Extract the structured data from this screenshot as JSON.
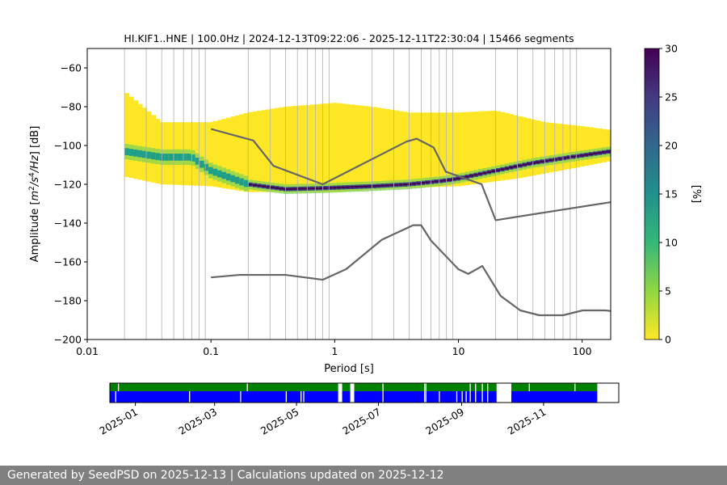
{
  "chart_data": [
    {
      "type": "heatmap",
      "title": "HI.KIF1..HNE | 100.0Hz | 2024-12-13T09:22:06 - 2025-12-11T22:30:04 | 15466 segments",
      "xlabel": "Period [s]",
      "ylabel_parts": [
        "Amplitude [",
        "m",
        "2",
        "/s",
        "4",
        "/Hz",
        "] [dB]"
      ],
      "xscale": "log",
      "xlim": [
        0.01,
        170
      ],
      "ylim": [
        -200,
        -50
      ],
      "x_ticks": [
        {
          "v": 0.01,
          "label": "0.01"
        },
        {
          "v": 0.1,
          "label": "0.1"
        },
        {
          "v": 1,
          "label": "1"
        },
        {
          "v": 10,
          "label": "10"
        },
        {
          "v": 100,
          "label": "100"
        }
      ],
      "y_ticks": [
        {
          "v": -60,
          "label": "−60"
        },
        {
          "v": -80,
          "label": "−80"
        },
        {
          "v": -100,
          "label": "−100"
        },
        {
          "v": -120,
          "label": "−120"
        },
        {
          "v": -140,
          "label": "−140"
        },
        {
          "v": -160,
          "label": "−160"
        },
        {
          "v": -180,
          "label": "−180"
        },
        {
          "v": -200,
          "label": "−200"
        }
      ],
      "vertical_grid_periods": [
        0.02,
        0.03,
        0.04,
        0.05,
        0.06,
        0.07,
        0.08,
        0.09,
        0.2,
        0.3,
        0.4,
        0.5,
        0.6,
        0.7,
        0.8,
        0.9,
        2,
        3,
        4,
        5,
        6,
        7,
        8,
        9,
        20,
        30,
        40,
        50,
        60,
        70,
        80,
        90
      ],
      "horizontal_grid": false,
      "colorbar": {
        "label": "[%]",
        "range": [
          0,
          30
        ],
        "ticks": [
          0,
          5,
          10,
          15,
          20,
          25,
          30
        ],
        "colormap": "viridis"
      },
      "psd": {
        "period_range": [
          0.02,
          170
        ],
        "mode": [
          [
            0.02,
            -103
          ],
          [
            0.04,
            -106
          ],
          [
            0.07,
            -106
          ],
          [
            0.1,
            -113
          ],
          [
            0.2,
            -120
          ],
          [
            0.4,
            -122.5
          ],
          [
            0.8,
            -122
          ],
          [
            2,
            -121
          ],
          [
            4,
            -120
          ],
          [
            8,
            -118
          ],
          [
            10,
            -117
          ],
          [
            20,
            -113
          ],
          [
            40,
            -109
          ],
          [
            80,
            -106
          ],
          [
            170,
            -103
          ]
        ],
        "spread_low": [
          [
            0.02,
            -116
          ],
          [
            0.04,
            -120
          ],
          [
            0.1,
            -121
          ],
          [
            0.2,
            -124
          ],
          [
            0.4,
            -124
          ],
          [
            1,
            -124
          ],
          [
            3,
            -122
          ],
          [
            10,
            -121
          ],
          [
            30,
            -117
          ],
          [
            80,
            -112
          ],
          [
            170,
            -108
          ]
        ],
        "spread_high": [
          [
            0.02,
            -72
          ],
          [
            0.04,
            -88
          ],
          [
            0.1,
            -88
          ],
          [
            0.2,
            -83
          ],
          [
            0.4,
            -80
          ],
          [
            1,
            -78
          ],
          [
            2,
            -80
          ],
          [
            4,
            -83
          ],
          [
            10,
            -83
          ],
          [
            20,
            -82
          ],
          [
            50,
            -88
          ],
          [
            100,
            -90
          ],
          [
            170,
            -92
          ]
        ]
      },
      "series": [
        {
          "name": "NHNM",
          "x": [
            0.1,
            0.22,
            0.32,
            0.8,
            3.8,
            4.6,
            6.3,
            7.9,
            15.4,
            20,
            354.8
          ],
          "y": [
            -91.5,
            -97.4,
            -110.5,
            -120,
            -98,
            -96.5,
            -101,
            -113.5,
            -120,
            -138.5,
            -126
          ]
        },
        {
          "name": "NLNM",
          "x": [
            0.1,
            0.17,
            0.4,
            0.8,
            1.24,
            2.4,
            4.3,
            5,
            6,
            10,
            12,
            15.6,
            21.9,
            31.6,
            45,
            70,
            101,
            154,
            328
          ],
          "y": [
            -168,
            -166.7,
            -166.7,
            -169.2,
            -163.7,
            -148.6,
            -141.1,
            -141.1,
            -149,
            -163.8,
            -166.2,
            -162.1,
            -177.5,
            -185,
            -187.5,
            -187.5,
            -185,
            -185,
            -187.5
          ]
        }
      ],
      "line_color": "#666666"
    },
    {
      "type": "availability",
      "xlim": [
        "2024-12-13",
        "2025-12-27"
      ],
      "data_range": [
        "2024-12-13",
        "2025-12-11"
      ],
      "x_ticks": [
        "2025-01",
        "2025-03",
        "2025-05",
        "2025-07",
        "2025-09",
        "2025-11"
      ],
      "tracks": [
        {
          "name": "upper",
          "color": "#008000"
        },
        {
          "name": "lower",
          "color": "#0000ff"
        }
      ],
      "gaps_common": [
        [
          "2025-06-01",
          "2025-06-04"
        ],
        [
          "2025-06-10",
          "2025-06-13"
        ],
        [
          "2025-09-27",
          "2025-10-08"
        ]
      ],
      "gap_lines_common": [
        "2025-06-02",
        "2025-07-04",
        "2025-08-04",
        "2025-08-05",
        "2025-09-07",
        "2025-09-11",
        "2025-09-16",
        "2025-09-20"
      ],
      "gap_lines_lower": [
        "2024-12-17",
        "2025-02-10",
        "2025-03-20",
        "2025-04-23",
        "2025-05-04",
        "2025-05-06",
        "2025-08-15",
        "2025-08-28",
        "2025-09-01",
        "2025-09-04"
      ],
      "gap_lines_upper": [
        "2024-12-19",
        "2025-03-25",
        "2025-10-21",
        "2025-11-24"
      ]
    }
  ],
  "footer": {
    "text": "Generated by SeedPSD on 2025-12-13 | Calculations updated on 2025-12-12"
  }
}
